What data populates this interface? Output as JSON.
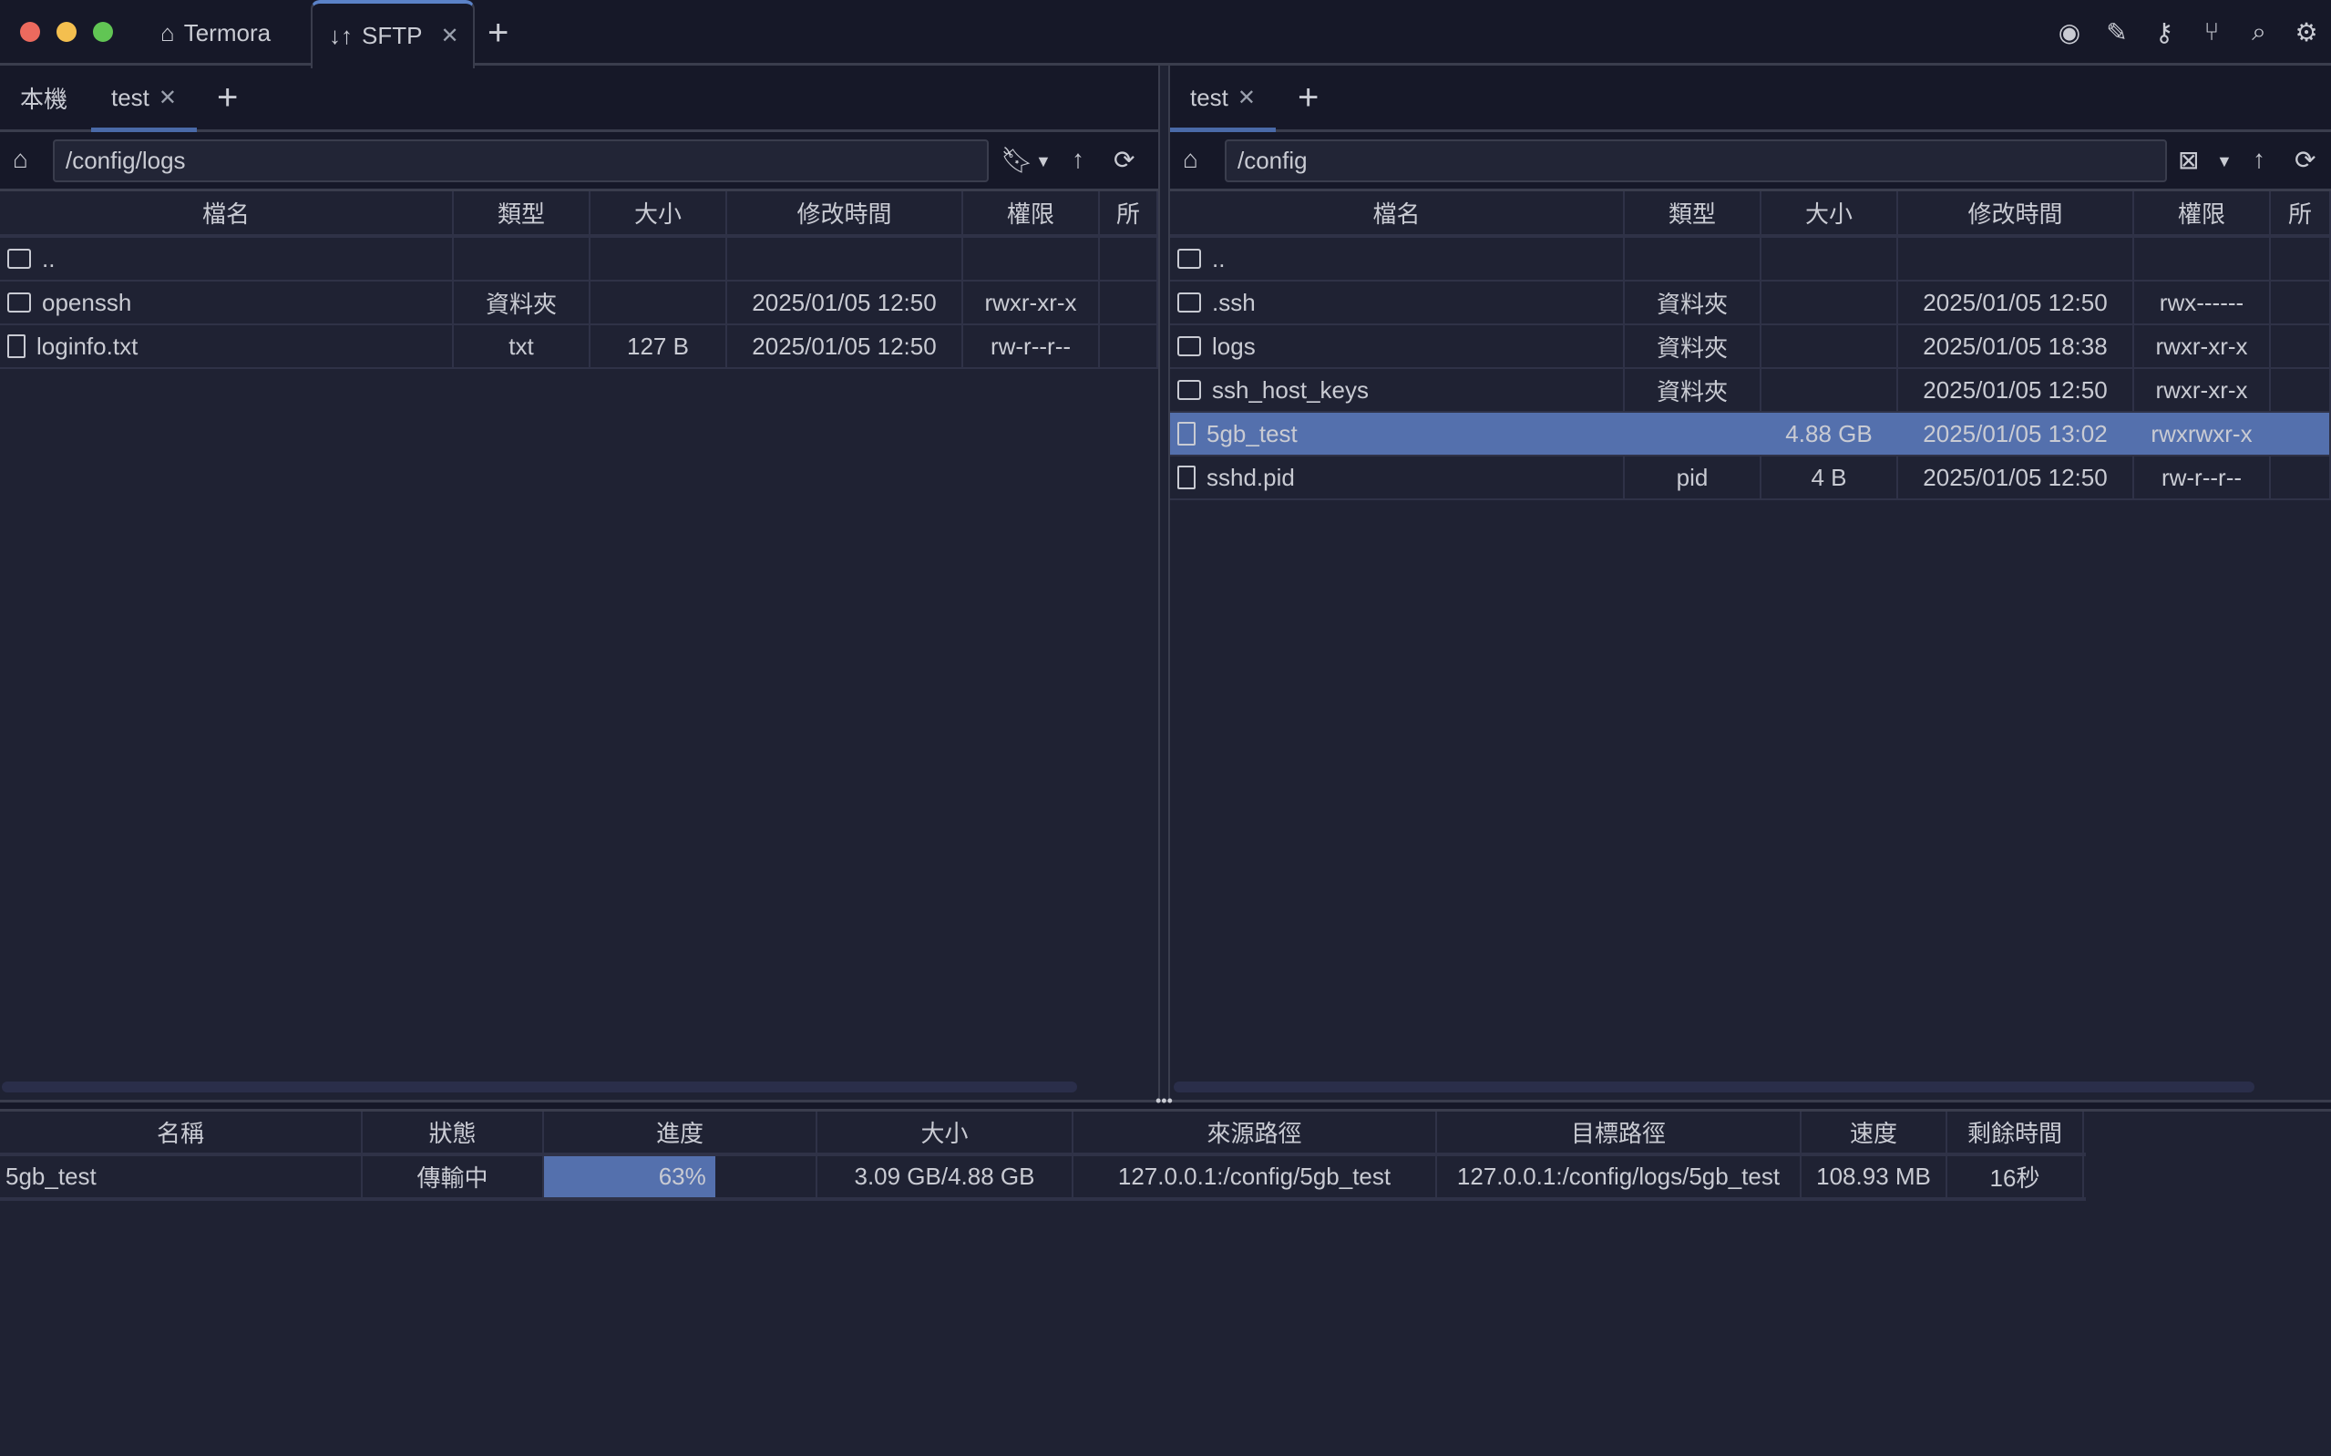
{
  "window": {
    "tabs": [
      {
        "label": "Termora",
        "icon": "home-icon"
      },
      {
        "label": "SFTP",
        "icon": "transfer-arrows-icon",
        "active": true
      }
    ],
    "toolbar_icons": [
      "record-icon",
      "pencil-icon",
      "key-icon",
      "branch-icon",
      "search-icon",
      "gear-icon"
    ]
  },
  "left": {
    "tabs": [
      {
        "label": "本機"
      },
      {
        "label": "test",
        "active": true
      }
    ],
    "path": "/config/logs",
    "columns": [
      "檔名",
      "類型",
      "大小",
      "修改時間",
      "權限",
      "所"
    ],
    "rows": [
      {
        "name": "..",
        "type": "",
        "size": "",
        "mtime": "",
        "perm": "",
        "kind": "folder"
      },
      {
        "name": "openssh",
        "type": "資料夾",
        "size": "",
        "mtime": "2025/01/05 12:50",
        "perm": "rwxr-xr-x",
        "kind": "folder"
      },
      {
        "name": "loginfo.txt",
        "type": "txt",
        "size": "127 B",
        "mtime": "2025/01/05 12:50",
        "perm": "rw-r--r--",
        "kind": "file"
      }
    ]
  },
  "right": {
    "tabs": [
      {
        "label": "test",
        "active": true
      }
    ],
    "path": "/config",
    "columns": [
      "檔名",
      "類型",
      "大小",
      "修改時間",
      "權限",
      "所"
    ],
    "rows": [
      {
        "name": "..",
        "type": "",
        "size": "",
        "mtime": "",
        "perm": "",
        "kind": "folder"
      },
      {
        "name": ".ssh",
        "type": "資料夾",
        "size": "",
        "mtime": "2025/01/05 12:50",
        "perm": "rwx------",
        "kind": "folder"
      },
      {
        "name": "logs",
        "type": "資料夾",
        "size": "",
        "mtime": "2025/01/05 18:38",
        "perm": "rwxr-xr-x",
        "kind": "folder"
      },
      {
        "name": "ssh_host_keys",
        "type": "資料夾",
        "size": "",
        "mtime": "2025/01/05 12:50",
        "perm": "rwxr-xr-x",
        "kind": "folder"
      },
      {
        "name": "5gb_test",
        "type": "",
        "size": "4.88 GB",
        "mtime": "2025/01/05 13:02",
        "perm": "rwxrwxr-x",
        "kind": "file",
        "selected": true
      },
      {
        "name": "sshd.pid",
        "type": "pid",
        "size": "4 B",
        "mtime": "2025/01/05 12:50",
        "perm": "rw-r--r--",
        "kind": "file"
      }
    ]
  },
  "transfers": {
    "columns": [
      "名稱",
      "狀態",
      "進度",
      "大小",
      "來源路徑",
      "目標路徑",
      "速度",
      "剩餘時間"
    ],
    "rows": [
      {
        "name": "5gb_test",
        "status": "傳輸中",
        "progress": "63%",
        "progress_value": 63,
        "size": "3.09 GB/4.88 GB",
        "source": "127.0.0.1:/config/5gb_test",
        "target": "127.0.0.1:/config/logs/5gb_test",
        "speed": "108.93 MB",
        "remaining": "16秒"
      }
    ]
  },
  "colors": {
    "accent": "#5b82c8",
    "selected_row": "#5470ad",
    "progress": "#5470ad"
  }
}
